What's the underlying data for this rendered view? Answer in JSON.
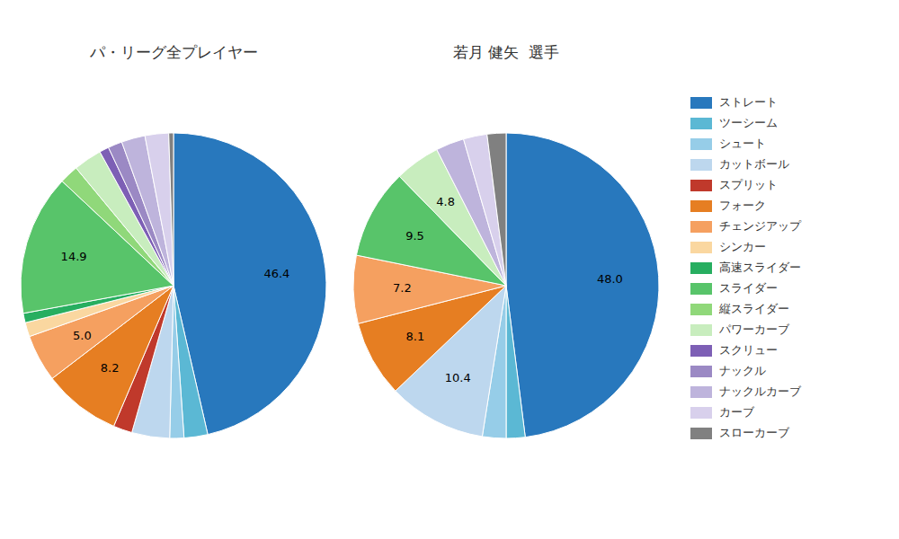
{
  "chart_data": [
    {
      "type": "pie",
      "title": "パ・リーグ全プレイヤー",
      "categories": [
        "ストレート",
        "ツーシーム",
        "シュート",
        "カットボール",
        "スプリット",
        "フォーク",
        "チェンジアップ",
        "シンカー",
        "高速スライダー",
        "スライダー",
        "縦スライダー",
        "パワーカーブ",
        "スクリュー",
        "ナックル",
        "ナックルカーブ",
        "カーブ",
        "スローカーブ"
      ],
      "values": [
        46.4,
        2.5,
        1.5,
        4.0,
        2.0,
        8.2,
        5.0,
        1.5,
        1.0,
        14.9,
        2.0,
        3.0,
        1.0,
        1.5,
        2.5,
        2.5,
        0.5
      ],
      "value_labels": [
        "46.4",
        null,
        null,
        null,
        null,
        "8.2",
        "5.0",
        null,
        null,
        "14.9",
        null,
        null,
        null,
        null,
        null,
        null,
        null
      ],
      "colors": [
        "#2878BD",
        "#5BB8D4",
        "#96CDE8",
        "#BDD7EE",
        "#C0392B",
        "#E67E22",
        "#F5A060",
        "#FAD7A0",
        "#27AE60",
        "#58C46A",
        "#90D87A",
        "#C8EDBE",
        "#7D5FB5",
        "#9B89C4",
        "#BEB4DC",
        "#D8D0EC",
        "#808080"
      ],
      "data_labels": true,
      "legend": "right"
    },
    {
      "type": "pie",
      "title": "若月 健矢  選手",
      "categories": [
        "ストレート",
        "ツーシーム",
        "シュート",
        "カットボール",
        "フォーク",
        "チェンジアップ",
        "スライダー",
        "パワーカーブ",
        "ナックルカーブ",
        "カーブ",
        "スローカーブ"
      ],
      "values": [
        48.0,
        2.0,
        2.5,
        10.4,
        8.1,
        7.2,
        9.5,
        4.8,
        3.0,
        2.5,
        2.0
      ],
      "value_labels": [
        "48.0",
        null,
        null,
        "10.4",
        "8.1",
        "7.2",
        "9.5",
        "4.8",
        null,
        null,
        null
      ],
      "colors": [
        "#2878BD",
        "#5BB8D4",
        "#96CDE8",
        "#BDD7EE",
        "#E67E22",
        "#F5A060",
        "#58C46A",
        "#C8EDBE",
        "#BEB4DC",
        "#D8D0EC",
        "#808080"
      ],
      "data_labels": true,
      "legend": "right"
    }
  ]
}
